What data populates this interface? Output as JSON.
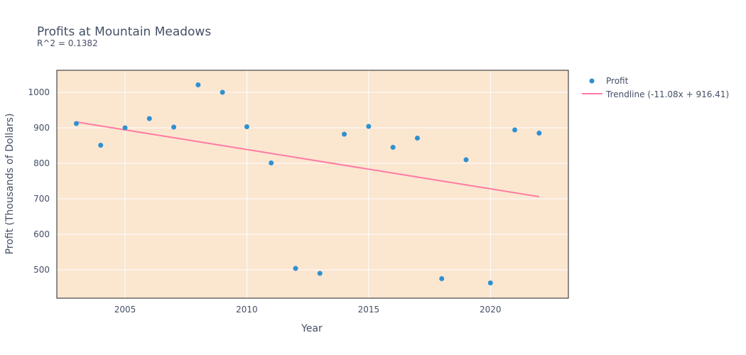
{
  "chart_data": {
    "type": "scatter",
    "title": "Profits at Mountain Meadows",
    "subtitle": "R^2 = 0.1382",
    "xlabel": "Year",
    "ylabel": "Profit (Thousands of Dollars)",
    "xlim": [
      2002.2,
      2023.2
    ],
    "ylim": [
      420,
      1062
    ],
    "xticks": [
      2005,
      2010,
      2015,
      2020
    ],
    "yticks": [
      500,
      600,
      700,
      800,
      900,
      1000
    ],
    "grid": true,
    "legend_position": "top-right outside",
    "plot_background": "#fbe6d0",
    "series": [
      {
        "name": "Profit",
        "mode": "markers",
        "color": "#2e91cf",
        "x": [
          2003,
          2004,
          2005,
          2006,
          2007,
          2008,
          2009,
          2010,
          2011,
          2012,
          2013,
          2014,
          2015,
          2016,
          2017,
          2018,
          2019,
          2020,
          2021,
          2022
        ],
        "y": [
          912,
          851,
          900,
          926,
          902,
          1021,
          1000,
          903,
          801,
          504,
          490,
          882,
          904,
          845,
          871,
          475,
          810,
          463,
          894,
          885
        ]
      },
      {
        "name": "Trendline (-11.08x + 916.41)",
        "mode": "line",
        "color": "#ff7aa2",
        "x": [
          2003,
          2022
        ],
        "y": [
          916.41,
          705.89
        ]
      }
    ]
  }
}
